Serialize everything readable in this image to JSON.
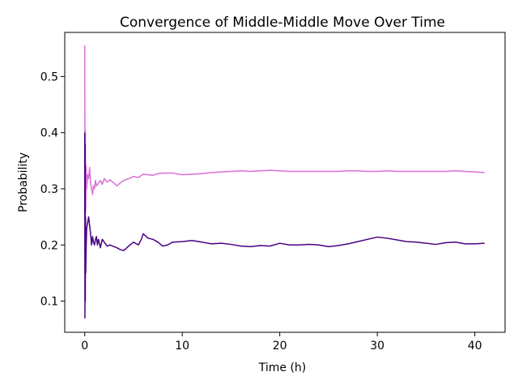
{
  "chart_data": {
    "type": "line",
    "title": "Convergence of Middle-Middle Move Over Time",
    "xlabel": "Time (h)",
    "ylabel": "Probability",
    "xlim": [
      -2.05,
      43.1
    ],
    "ylim": [
      0.0445,
      0.5785
    ],
    "xticks": [
      0,
      10,
      20,
      30,
      40
    ],
    "xtick_labels": [
      "0",
      "10",
      "20",
      "30",
      "40"
    ],
    "yticks": [
      0.1,
      0.2,
      0.3,
      0.4,
      0.5
    ],
    "ytick_labels": [
      "0.1",
      "0.2",
      "0.3",
      "0.4",
      "0.5"
    ],
    "grid": false,
    "series": [
      {
        "color": "#da70d6",
        "x": [
          0,
          0.03,
          0.06,
          0.1,
          0.15,
          0.2,
          0.3,
          0.4,
          0.5,
          0.6,
          0.7,
          0.8,
          0.9,
          1.0,
          1.1,
          1.2,
          1.4,
          1.6,
          1.8,
          2.0,
          2.3,
          2.6,
          3.0,
          3.3,
          3.6,
          4.0,
          4.5,
          5.0,
          5.5,
          6.0,
          6.5,
          7.0,
          7.5,
          8.0,
          9.0,
          10.0,
          11.0,
          12.0,
          13.0,
          14.0,
          15.0,
          16.0,
          17.0,
          18.0,
          19.0,
          20.0,
          21.0,
          22.0,
          23.0,
          24.0,
          25.0,
          26.0,
          27.0,
          28.0,
          29.0,
          30.0,
          31.0,
          32.0,
          33.0,
          34.0,
          35.0,
          36.0,
          37.0,
          38.0,
          39.0,
          40.0,
          41.0
        ],
        "y": [
          0.555,
          0.25,
          0.405,
          0.26,
          0.34,
          0.3,
          0.325,
          0.318,
          0.338,
          0.31,
          0.3,
          0.29,
          0.305,
          0.3,
          0.315,
          0.305,
          0.31,
          0.315,
          0.308,
          0.318,
          0.312,
          0.316,
          0.31,
          0.305,
          0.31,
          0.315,
          0.318,
          0.322,
          0.32,
          0.326,
          0.325,
          0.324,
          0.327,
          0.328,
          0.328,
          0.325,
          0.326,
          0.327,
          0.329,
          0.33,
          0.331,
          0.332,
          0.331,
          0.332,
          0.333,
          0.332,
          0.331,
          0.331,
          0.331,
          0.331,
          0.331,
          0.331,
          0.332,
          0.332,
          0.331,
          0.331,
          0.332,
          0.331,
          0.331,
          0.331,
          0.331,
          0.331,
          0.331,
          0.332,
          0.331,
          0.33,
          0.329
        ]
      },
      {
        "color": "#4b0082",
        "x": [
          0,
          0.02,
          0.04,
          0.06,
          0.08,
          0.1,
          0.15,
          0.2,
          0.3,
          0.4,
          0.5,
          0.6,
          0.7,
          0.8,
          0.9,
          1.0,
          1.1,
          1.2,
          1.3,
          1.4,
          1.6,
          1.8,
          2.0,
          2.3,
          2.6,
          3.0,
          3.3,
          3.6,
          4.0,
          4.5,
          5.0,
          5.5,
          5.8,
          6.0,
          6.5,
          7.0,
          7.5,
          8.0,
          8.5,
          9.0,
          10.0,
          11.0,
          12.0,
          13.0,
          14.0,
          15.0,
          16.0,
          17.0,
          18.0,
          19.0,
          20.0,
          21.0,
          22.0,
          23.0,
          24.0,
          25.0,
          26.0,
          27.0,
          28.0,
          29.0,
          30.0,
          31.0,
          32.0,
          33.0,
          34.0,
          35.0,
          36.0,
          37.0,
          38.0,
          39.0,
          40.0,
          41.0
        ],
        "y": [
          0.4,
          0.07,
          0.38,
          0.1,
          0.25,
          0.15,
          0.2,
          0.23,
          0.24,
          0.25,
          0.235,
          0.22,
          0.2,
          0.215,
          0.205,
          0.2,
          0.21,
          0.215,
          0.2,
          0.21,
          0.195,
          0.21,
          0.205,
          0.198,
          0.2,
          0.197,
          0.195,
          0.192,
          0.19,
          0.198,
          0.205,
          0.2,
          0.21,
          0.22,
          0.212,
          0.21,
          0.205,
          0.198,
          0.2,
          0.205,
          0.206,
          0.208,
          0.205,
          0.202,
          0.203,
          0.201,
          0.198,
          0.197,
          0.199,
          0.198,
          0.203,
          0.2,
          0.2,
          0.201,
          0.2,
          0.197,
          0.199,
          0.202,
          0.206,
          0.21,
          0.214,
          0.212,
          0.209,
          0.206,
          0.205,
          0.203,
          0.201,
          0.204,
          0.205,
          0.202,
          0.202,
          0.203
        ]
      }
    ]
  }
}
